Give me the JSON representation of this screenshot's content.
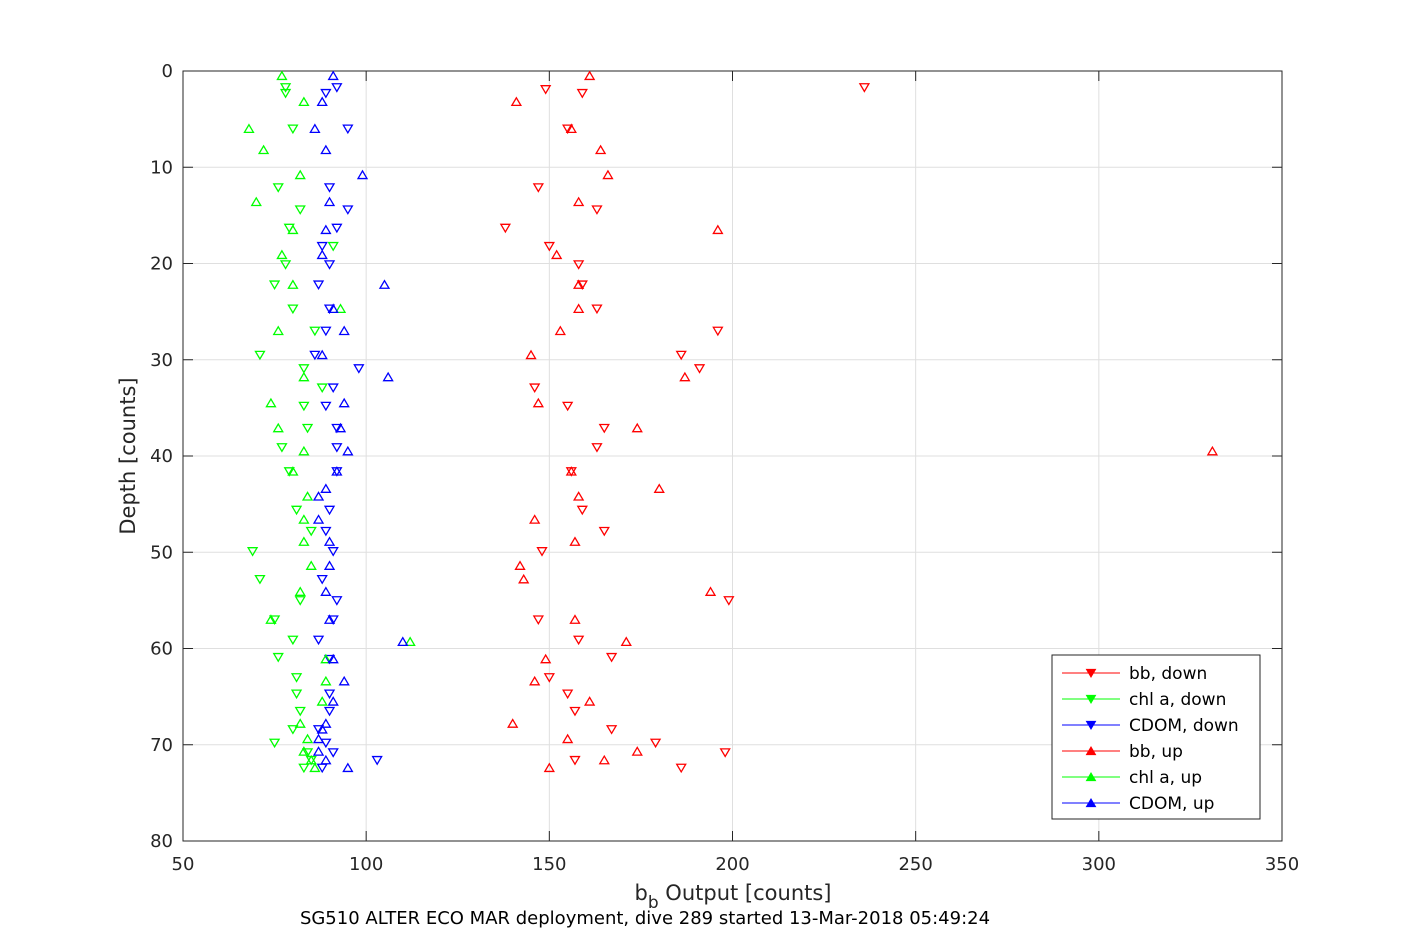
{
  "chart_data": {
    "type": "scatter",
    "xlabel_main": "b",
    "xlabel_sub": "b",
    "xlabel_rest": " Output [counts]",
    "ylabel": "Depth [counts]",
    "caption": "SG510 ALTER ECO MAR deployment, dive 289 started 13-Mar-2018 05:49:24",
    "xlim": [
      50,
      350
    ],
    "ylim": [
      0,
      80
    ],
    "y_reversed": true,
    "grid": true,
    "x_ticks": [
      50,
      100,
      150,
      200,
      250,
      300,
      350
    ],
    "y_ticks": [
      0,
      10,
      20,
      30,
      40,
      50,
      60,
      70,
      80
    ],
    "legend_position": "bottom-right",
    "series": [
      {
        "name": "bb, down",
        "color": "#ff0000",
        "marker": "triangle-down",
        "points": [
          [
            236,
            1.7
          ],
          [
            149,
            1.9
          ],
          [
            159,
            2.3
          ],
          [
            155,
            6.0
          ],
          [
            147,
            12.1
          ],
          [
            163,
            14.4
          ],
          [
            138,
            16.3
          ],
          [
            150,
            18.2
          ],
          [
            158,
            20.1
          ],
          [
            159,
            22.2
          ],
          [
            196,
            27.0
          ],
          [
            163,
            24.7
          ],
          [
            186,
            29.5
          ],
          [
            191,
            30.9
          ],
          [
            146,
            32.9
          ],
          [
            155,
            34.8
          ],
          [
            165,
            37.1
          ],
          [
            163,
            39.1
          ],
          [
            156,
            41.6
          ],
          [
            159,
            45.6
          ],
          [
            165,
            47.8
          ],
          [
            148,
            49.9
          ],
          [
            199,
            55.0
          ],
          [
            147,
            57.0
          ],
          [
            158,
            59.1
          ],
          [
            167,
            60.9
          ],
          [
            150,
            63.0
          ],
          [
            155,
            64.7
          ],
          [
            157,
            66.5
          ],
          [
            167,
            68.4
          ],
          [
            179,
            69.8
          ],
          [
            198,
            70.8
          ],
          [
            157,
            71.6
          ],
          [
            186,
            72.4
          ]
        ]
      },
      {
        "name": "chl a, down",
        "color": "#00ff00",
        "marker": "triangle-down",
        "points": [
          [
            78,
            1.7
          ],
          [
            78,
            2.3
          ],
          [
            80,
            6.0
          ],
          [
            76,
            12.1
          ],
          [
            82,
            14.4
          ],
          [
            79,
            16.3
          ],
          [
            91,
            18.2
          ],
          [
            78,
            20.1
          ],
          [
            75,
            22.2
          ],
          [
            80,
            24.7
          ],
          [
            86,
            27.0
          ],
          [
            71,
            29.5
          ],
          [
            83,
            30.9
          ],
          [
            88,
            32.9
          ],
          [
            83,
            34.8
          ],
          [
            84,
            37.1
          ],
          [
            77,
            39.1
          ],
          [
            79,
            41.6
          ],
          [
            81,
            45.6
          ],
          [
            85,
            47.8
          ],
          [
            69,
            49.9
          ],
          [
            71,
            52.8
          ],
          [
            82,
            55.0
          ],
          [
            75,
            57.0
          ],
          [
            80,
            59.1
          ],
          [
            76,
            60.9
          ],
          [
            81,
            63.0
          ],
          [
            81,
            64.7
          ],
          [
            82,
            66.5
          ],
          [
            80,
            68.4
          ],
          [
            75,
            69.8
          ],
          [
            84,
            70.8
          ],
          [
            85,
            71.6
          ],
          [
            83,
            72.4
          ]
        ]
      },
      {
        "name": "CDOM, down",
        "color": "#0000ff",
        "marker": "triangle-down",
        "points": [
          [
            92,
            1.7
          ],
          [
            89,
            2.3
          ],
          [
            95,
            6.0
          ],
          [
            90,
            12.1
          ],
          [
            95,
            14.4
          ],
          [
            92,
            16.3
          ],
          [
            88,
            18.2
          ],
          [
            90,
            20.1
          ],
          [
            87,
            22.2
          ],
          [
            90,
            24.7
          ],
          [
            89,
            27.0
          ],
          [
            86,
            29.5
          ],
          [
            98,
            30.9
          ],
          [
            91,
            32.9
          ],
          [
            89,
            34.8
          ],
          [
            92,
            37.1
          ],
          [
            92,
            39.1
          ],
          [
            92,
            41.6
          ],
          [
            90,
            45.6
          ],
          [
            89,
            47.8
          ],
          [
            91,
            49.9
          ],
          [
            88,
            52.8
          ],
          [
            92,
            55.0
          ],
          [
            91,
            57.0
          ],
          [
            87,
            59.1
          ],
          [
            90,
            61.1
          ],
          [
            90,
            64.7
          ],
          [
            90,
            66.5
          ],
          [
            87,
            68.4
          ],
          [
            89,
            69.8
          ],
          [
            91,
            70.8
          ],
          [
            103,
            71.6
          ],
          [
            88,
            72.4
          ]
        ]
      },
      {
        "name": "bb, up",
        "color": "#ff0000",
        "marker": "triangle-up",
        "points": [
          [
            161,
            0.5
          ],
          [
            141,
            3.2
          ],
          [
            156,
            6.0
          ],
          [
            164,
            8.2
          ],
          [
            166,
            10.8
          ],
          [
            158,
            13.6
          ],
          [
            196,
            16.5
          ],
          [
            152,
            19.1
          ],
          [
            158,
            22.2
          ],
          [
            158,
            24.7
          ],
          [
            153,
            27.0
          ],
          [
            145,
            29.5
          ],
          [
            187,
            31.8
          ],
          [
            147,
            34.5
          ],
          [
            174,
            37.1
          ],
          [
            331,
            39.5
          ],
          [
            156,
            41.6
          ],
          [
            180,
            43.4
          ],
          [
            158,
            44.2
          ],
          [
            146,
            46.6
          ],
          [
            157,
            48.9
          ],
          [
            142,
            51.4
          ],
          [
            143,
            52.8
          ],
          [
            194,
            54.1
          ],
          [
            157,
            57.0
          ],
          [
            171,
            59.3
          ],
          [
            149,
            61.1
          ],
          [
            146,
            63.4
          ],
          [
            161,
            65.5
          ],
          [
            140,
            67.8
          ],
          [
            155,
            69.4
          ],
          [
            174,
            70.7
          ],
          [
            165,
            71.6
          ],
          [
            150,
            72.4
          ]
        ]
      },
      {
        "name": "chl a, up",
        "color": "#00ff00",
        "marker": "triangle-up",
        "points": [
          [
            77,
            0.5
          ],
          [
            83,
            3.2
          ],
          [
            68,
            6.0
          ],
          [
            72,
            8.2
          ],
          [
            82,
            10.8
          ],
          [
            70,
            13.6
          ],
          [
            80,
            16.5
          ],
          [
            77,
            19.1
          ],
          [
            80,
            22.2
          ],
          [
            93,
            24.7
          ],
          [
            76,
            27.0
          ],
          [
            83,
            31.8
          ],
          [
            74,
            34.5
          ],
          [
            76,
            37.1
          ],
          [
            83,
            39.5
          ],
          [
            80,
            41.6
          ],
          [
            84,
            44.2
          ],
          [
            83,
            46.6
          ],
          [
            83,
            48.9
          ],
          [
            85,
            51.4
          ],
          [
            82,
            54.1
          ],
          [
            74,
            57.0
          ],
          [
            112,
            59.3
          ],
          [
            89,
            61.1
          ],
          [
            89,
            63.4
          ],
          [
            88,
            65.5
          ],
          [
            82,
            67.8
          ],
          [
            84,
            69.4
          ],
          [
            83,
            70.7
          ],
          [
            85,
            71.6
          ],
          [
            86,
            72.4
          ]
        ]
      },
      {
        "name": "CDOM, up",
        "color": "#0000ff",
        "marker": "triangle-up",
        "points": [
          [
            91,
            0.5
          ],
          [
            88,
            3.2
          ],
          [
            86,
            6.0
          ],
          [
            89,
            8.2
          ],
          [
            99,
            10.8
          ],
          [
            90,
            13.6
          ],
          [
            89,
            16.5
          ],
          [
            88,
            19.1
          ],
          [
            105,
            22.2
          ],
          [
            91,
            24.7
          ],
          [
            94,
            27.0
          ],
          [
            88,
            29.5
          ],
          [
            106,
            31.8
          ],
          [
            94,
            34.5
          ],
          [
            93,
            37.1
          ],
          [
            95,
            39.5
          ],
          [
            92,
            41.6
          ],
          [
            89,
            43.4
          ],
          [
            87,
            44.2
          ],
          [
            87,
            46.6
          ],
          [
            90,
            48.9
          ],
          [
            90,
            51.4
          ],
          [
            89,
            54.1
          ],
          [
            90,
            57.0
          ],
          [
            110,
            59.3
          ],
          [
            91,
            61.1
          ],
          [
            94,
            63.4
          ],
          [
            91,
            65.5
          ],
          [
            89,
            67.8
          ],
          [
            88,
            68.4
          ],
          [
            87,
            69.4
          ],
          [
            87,
            70.7
          ],
          [
            89,
            71.6
          ],
          [
            95,
            72.4
          ]
        ]
      }
    ]
  }
}
